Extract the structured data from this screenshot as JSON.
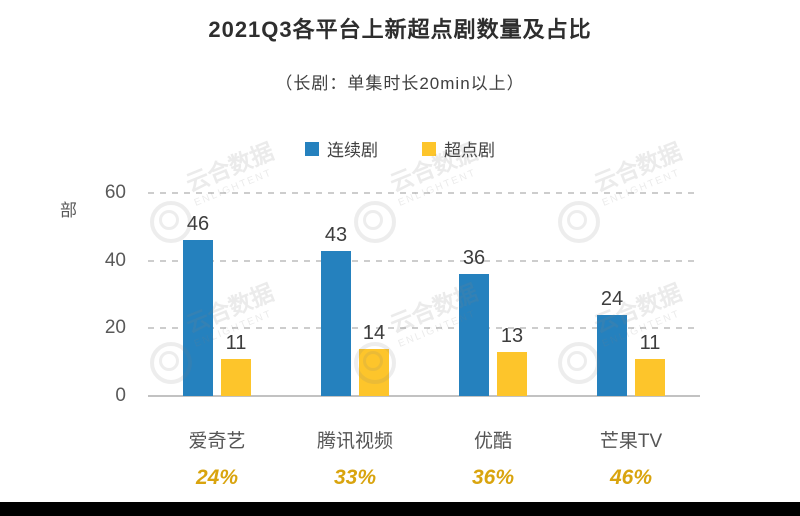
{
  "title": "2021Q3各平台上新超点剧数量及占比",
  "subtitle": "（长剧：单集时长20min以上）",
  "legend": {
    "items": [
      {
        "label": "连续剧",
        "color": "#2581BE"
      },
      {
        "label": "超点剧",
        "color": "#FDC52B"
      }
    ]
  },
  "y_axis": {
    "unit": "部",
    "ticks": [
      60,
      40,
      20,
      0
    ],
    "max": 60
  },
  "watermark": {
    "brand": "云合数据",
    "brand_en": "ENLIGHTENT"
  },
  "colors": {
    "series_blue": "#2581BE",
    "series_yellow": "#FDC52B",
    "percentage": "#D9A40E",
    "grid": "#CDCDCD",
    "axis_line": "#C2C2C2",
    "value_label": "#3D3D3D",
    "axis_text": "#595959",
    "footer": "#000000"
  },
  "chart_data": {
    "type": "bar",
    "title": "2021Q3各平台上新超点剧数量及占比",
    "subtitle": "（长剧：单集时长20min以上）",
    "categories": [
      "爱奇艺",
      "腾讯视频",
      "优酷",
      "芒果TV"
    ],
    "series": [
      {
        "name": "连续剧",
        "color": "#2581BE",
        "values": [
          46,
          43,
          36,
          24
        ]
      },
      {
        "name": "超点剧",
        "color": "#FDC52B",
        "values": [
          11,
          14,
          13,
          11
        ]
      }
    ],
    "percent_labels": [
      "24%",
      "33%",
      "36%",
      "46%"
    ],
    "ylabel": "部",
    "ylim": [
      0,
      60
    ],
    "yticks": [
      0,
      20,
      40,
      60
    ],
    "grid": "horizontal-dashed",
    "legend_position": "top",
    "data_labels": true
  }
}
